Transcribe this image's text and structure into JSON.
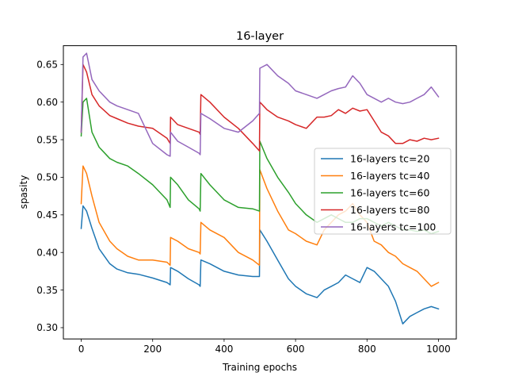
{
  "chart_data": {
    "type": "line",
    "title": "16-layer",
    "xlabel": "Training epochs",
    "ylabel": "spasity",
    "xlim": [
      -50,
      1050
    ],
    "ylim": [
      0.285,
      0.675
    ],
    "x_ticks": [
      0,
      200,
      400,
      600,
      800,
      1000
    ],
    "x_tick_labels": [
      "0",
      "200",
      "400",
      "600",
      "800",
      "1000"
    ],
    "y_ticks": [
      0.3,
      0.35,
      0.4,
      0.45,
      0.5,
      0.55,
      0.6,
      0.65
    ],
    "y_tick_labels": [
      "0.30",
      "0.35",
      "0.40",
      "0.45",
      "0.50",
      "0.55",
      "0.60",
      "0.65"
    ],
    "grid": false,
    "legend_position": "center-right",
    "series": [
      {
        "name": "16-layers tc=20",
        "color": "#1f77b4",
        "x": [
          0,
          5,
          15,
          30,
          50,
          80,
          100,
          130,
          160,
          200,
          240,
          249,
          250,
          270,
          300,
          330,
          333,
          335,
          360,
          400,
          440,
          480,
          499,
          500,
          520,
          550,
          580,
          600,
          630,
          660,
          680,
          700,
          720,
          740,
          760,
          780,
          800,
          820,
          840,
          860,
          880,
          900,
          920,
          940,
          960,
          980,
          1000
        ],
        "y": [
          0.432,
          0.462,
          0.455,
          0.432,
          0.405,
          0.385,
          0.378,
          0.373,
          0.371,
          0.366,
          0.36,
          0.357,
          0.38,
          0.375,
          0.365,
          0.357,
          0.355,
          0.39,
          0.385,
          0.375,
          0.37,
          0.368,
          0.368,
          0.43,
          0.415,
          0.39,
          0.365,
          0.355,
          0.345,
          0.34,
          0.35,
          0.355,
          0.36,
          0.37,
          0.365,
          0.36,
          0.38,
          0.375,
          0.365,
          0.355,
          0.335,
          0.305,
          0.315,
          0.32,
          0.325,
          0.328,
          0.325
        ]
      },
      {
        "name": "16-layers tc=40",
        "color": "#ff7f0e",
        "x": [
          0,
          5,
          15,
          30,
          50,
          80,
          100,
          130,
          160,
          200,
          240,
          249,
          250,
          270,
          300,
          330,
          333,
          335,
          360,
          400,
          440,
          480,
          499,
          500,
          520,
          550,
          580,
          600,
          630,
          660,
          680,
          700,
          720,
          740,
          760,
          780,
          800,
          820,
          840,
          860,
          880,
          900,
          920,
          940,
          960,
          980,
          1000
        ],
        "y": [
          0.465,
          0.515,
          0.505,
          0.475,
          0.44,
          0.415,
          0.405,
          0.395,
          0.39,
          0.39,
          0.387,
          0.383,
          0.42,
          0.415,
          0.405,
          0.4,
          0.398,
          0.44,
          0.43,
          0.42,
          0.4,
          0.39,
          0.383,
          0.51,
          0.485,
          0.455,
          0.43,
          0.425,
          0.415,
          0.41,
          0.43,
          0.44,
          0.45,
          0.455,
          0.465,
          0.45,
          0.44,
          0.415,
          0.41,
          0.4,
          0.395,
          0.385,
          0.38,
          0.375,
          0.365,
          0.355,
          0.36
        ]
      },
      {
        "name": "16-layers tc=60",
        "color": "#2ca02c",
        "x": [
          0,
          5,
          15,
          30,
          50,
          80,
          100,
          130,
          160,
          200,
          240,
          249,
          250,
          270,
          300,
          330,
          333,
          335,
          360,
          400,
          440,
          480,
          499,
          500,
          520,
          550,
          580,
          600,
          630,
          660,
          680,
          700,
          720,
          740,
          760,
          780,
          800,
          820,
          840,
          860,
          880,
          900,
          920,
          940,
          960,
          980,
          1000
        ],
        "y": [
          0.555,
          0.6,
          0.605,
          0.56,
          0.54,
          0.525,
          0.52,
          0.515,
          0.505,
          0.49,
          0.47,
          0.46,
          0.5,
          0.49,
          0.47,
          0.458,
          0.455,
          0.505,
          0.49,
          0.47,
          0.46,
          0.458,
          0.455,
          0.548,
          0.525,
          0.5,
          0.48,
          0.465,
          0.45,
          0.44,
          0.445,
          0.45,
          0.445,
          0.44,
          0.44,
          0.445,
          0.445,
          0.44,
          0.435,
          0.44,
          0.435,
          0.43,
          0.43,
          0.428,
          0.43,
          0.425,
          0.428
        ]
      },
      {
        "name": "16-layers tc=80",
        "color": "#d62728",
        "x": [
          0,
          5,
          15,
          30,
          50,
          80,
          100,
          130,
          160,
          200,
          240,
          249,
          250,
          270,
          300,
          330,
          333,
          335,
          360,
          400,
          440,
          480,
          499,
          500,
          520,
          550,
          580,
          600,
          630,
          660,
          680,
          700,
          720,
          740,
          760,
          780,
          800,
          820,
          840,
          860,
          880,
          900,
          920,
          940,
          960,
          980,
          1000
        ],
        "y": [
          0.56,
          0.65,
          0.64,
          0.61,
          0.595,
          0.582,
          0.578,
          0.572,
          0.568,
          0.565,
          0.552,
          0.545,
          0.58,
          0.57,
          0.565,
          0.56,
          0.557,
          0.61,
          0.6,
          0.58,
          0.565,
          0.545,
          0.535,
          0.6,
          0.59,
          0.58,
          0.575,
          0.57,
          0.565,
          0.58,
          0.58,
          0.582,
          0.59,
          0.585,
          0.592,
          0.588,
          0.59,
          0.575,
          0.56,
          0.555,
          0.545,
          0.545,
          0.55,
          0.548,
          0.552,
          0.55,
          0.552
        ]
      },
      {
        "name": "16-layers tc=100",
        "color": "#9467bd",
        "x": [
          0,
          5,
          15,
          30,
          50,
          80,
          100,
          130,
          160,
          200,
          240,
          249,
          250,
          270,
          300,
          330,
          333,
          335,
          360,
          400,
          440,
          480,
          499,
          500,
          520,
          550,
          580,
          600,
          630,
          660,
          680,
          700,
          720,
          740,
          760,
          780,
          800,
          820,
          840,
          860,
          880,
          900,
          920,
          940,
          960,
          980,
          1000
        ],
        "y": [
          0.56,
          0.66,
          0.665,
          0.63,
          0.615,
          0.6,
          0.595,
          0.59,
          0.585,
          0.545,
          0.53,
          0.528,
          0.56,
          0.548,
          0.54,
          0.532,
          0.53,
          0.585,
          0.578,
          0.565,
          0.56,
          0.575,
          0.585,
          0.645,
          0.65,
          0.635,
          0.625,
          0.615,
          0.61,
          0.605,
          0.61,
          0.615,
          0.618,
          0.62,
          0.635,
          0.625,
          0.61,
          0.605,
          0.6,
          0.605,
          0.6,
          0.598,
          0.6,
          0.605,
          0.61,
          0.62,
          0.607
        ]
      }
    ]
  }
}
